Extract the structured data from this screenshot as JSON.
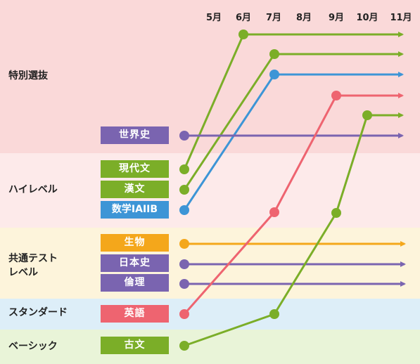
{
  "colors": {
    "green": "#7bae28",
    "blue": "#3d95d6",
    "red": "#ee6470",
    "purple": "#7a64b0",
    "orange": "#f4a71b",
    "band_tokubetsu": "#fad9d9",
    "band_high": "#fdeaea",
    "band_kyotsu": "#fdf4db",
    "band_standard": "#ddeef8",
    "band_basic": "#e9f4d8"
  },
  "months": [
    "5月",
    "6月",
    "7月",
    "8月",
    "9月",
    "10月",
    "11月"
  ],
  "bands": [
    {
      "id": "tokubetsu",
      "label": "特別選抜"
    },
    {
      "id": "high",
      "label": "ハイレベル"
    },
    {
      "id": "kyotsu",
      "label": "共通テスト\nレベル"
    },
    {
      "id": "standard",
      "label": "スタンダード"
    },
    {
      "id": "basic",
      "label": "ベーシック"
    }
  ],
  "subjects": [
    {
      "id": "sekaishi",
      "label": "世界史",
      "color": "purple"
    },
    {
      "id": "gendaibun",
      "label": "現代文",
      "color": "green"
    },
    {
      "id": "kanbun",
      "label": "漢文",
      "color": "green"
    },
    {
      "id": "sugaku",
      "label": "数学IAIIB",
      "color": "blue"
    },
    {
      "id": "seibutsu",
      "label": "生物",
      "color": "orange"
    },
    {
      "id": "nihonshi",
      "label": "日本史",
      "color": "purple"
    },
    {
      "id": "rinri",
      "label": "倫理",
      "color": "purple"
    },
    {
      "id": "eigo",
      "label": "英語",
      "color": "red"
    },
    {
      "id": "kobun",
      "label": "古文",
      "color": "green"
    }
  ],
  "paths": [
    {
      "subject": "gendaibun",
      "start_month": "5月",
      "rise_month": "6月",
      "from_band": "high",
      "to_band": "tokubetsu"
    },
    {
      "subject": "kanbun",
      "start_month": "5月",
      "rise_month": "7月",
      "from_band": "high",
      "to_band": "tokubetsu"
    },
    {
      "subject": "sugaku",
      "start_month": "5月",
      "rise_month": "7月",
      "from_band": "high",
      "to_band": "tokubetsu"
    },
    {
      "subject": "sekaishi",
      "start_month": "5月",
      "from_band": "tokubetsu",
      "to_band": "tokubetsu"
    },
    {
      "subject": "seibutsu",
      "start_month": "5月",
      "from_band": "kyotsu",
      "to_band": "kyotsu"
    },
    {
      "subject": "nihonshi",
      "start_month": "5月",
      "from_band": "kyotsu",
      "to_band": "kyotsu"
    },
    {
      "subject": "rinri",
      "start_month": "5月",
      "from_band": "kyotsu",
      "to_band": "kyotsu"
    },
    {
      "subject": "eigo",
      "start_month": "5月",
      "via_month": "7月",
      "via_band": "kyotsu",
      "rise_month": "9月",
      "from_band": "standard",
      "to_band": "tokubetsu"
    },
    {
      "subject": "kobun",
      "start_month": "5月",
      "via_month": "7月",
      "via_band": "standard",
      "via2_month": "9月",
      "via2_band": "kyotsu",
      "rise_month": "10月",
      "from_band": "basic",
      "to_band": "tokubetsu"
    }
  ]
}
